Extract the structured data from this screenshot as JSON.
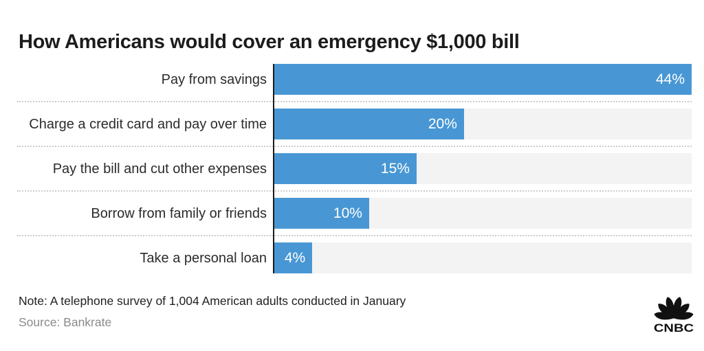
{
  "title": "How Americans would cover an emergency $1,000 bill",
  "chart_data": {
    "type": "bar",
    "orientation": "horizontal",
    "title": "How Americans would cover an emergency $1,000 bill",
    "categories": [
      "Pay from savings",
      "Charge a credit card and pay over time",
      "Pay the bill and cut other expenses",
      "Borrow from family or friends",
      "Take a personal loan"
    ],
    "values": [
      44,
      20,
      15,
      10,
      4
    ],
    "value_labels": [
      "44%",
      "20%",
      "15%",
      "10%",
      "4%"
    ],
    "xlim": [
      0,
      44
    ],
    "grid": false,
    "legend": false,
    "colors": {
      "bar": "#4897d4",
      "track": "#f3f3f3",
      "axis": "#1a1a1a",
      "separator": "#cccccc",
      "value_text": "#ffffff"
    }
  },
  "footer": {
    "note": "Note: A telephone survey of 1,004 American adults conducted in January",
    "source": "Source: Bankrate"
  },
  "logo": {
    "brand": "CNBC",
    "icon": "nbc-peacock-icon"
  }
}
